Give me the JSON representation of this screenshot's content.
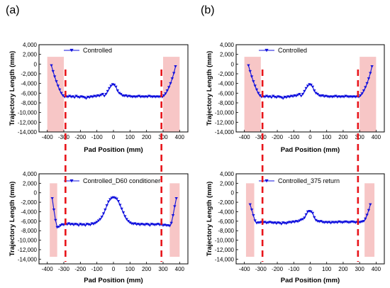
{
  "panel_labels": [
    "(a)",
    "(b)"
  ],
  "chart_data": [
    {
      "id": "top-left",
      "type": "line",
      "xlabel": "Pad Position (mm)",
      "ylabel": "Trajectory Length (mm)",
      "xlim": [
        -450,
        450
      ],
      "ylim": [
        -14000,
        4000
      ],
      "xticks": [
        -400,
        -300,
        -200,
        -100,
        0,
        100,
        200,
        300,
        400
      ],
      "yticks": [
        4000,
        2000,
        0,
        -2000,
        -4000,
        -6000,
        -8000,
        -10000,
        -12000,
        -14000
      ],
      "ytick_labels": [
        "4,000",
        "2,000",
        "0",
        "-2,000",
        "-4,000",
        "-6,000",
        "-8,000",
        "-10,000",
        "-12,000",
        "-14,000"
      ],
      "shaded_regions": [
        [
          -400,
          -300,
          -14000,
          1500
        ],
        [
          300,
          400,
          -14000,
          1500
        ]
      ],
      "dashed_lines": [
        -290,
        290
      ],
      "series": [
        {
          "name": "Controlled",
          "color": "#1010dd",
          "x": [
            -375,
            -365,
            -355,
            -345,
            -335,
            -325,
            -315,
            -305,
            -295,
            -285,
            -275,
            -265,
            -255,
            -245,
            -235,
            -225,
            -215,
            -205,
            -195,
            -185,
            -175,
            -165,
            -155,
            -145,
            -135,
            -125,
            -115,
            -105,
            -95,
            -85,
            -75,
            -65,
            -55,
            -45,
            -35,
            -25,
            -15,
            -5,
            5,
            15,
            25,
            35,
            45,
            55,
            65,
            75,
            85,
            95,
            105,
            115,
            125,
            135,
            145,
            155,
            165,
            175,
            185,
            195,
            205,
            215,
            225,
            235,
            245,
            255,
            265,
            275,
            285,
            295,
            305,
            315,
            325,
            335,
            345,
            355,
            365,
            375
          ],
          "y": [
            -300,
            -1500,
            -2600,
            -3600,
            -4500,
            -5300,
            -6000,
            -6500,
            -6800,
            -6700,
            -6800,
            -6600,
            -6800,
            -6700,
            -6900,
            -6600,
            -6800,
            -6900,
            -6700,
            -6800,
            -6900,
            -7100,
            -6800,
            -6900,
            -6700,
            -6800,
            -6600,
            -6700,
            -6500,
            -6600,
            -6400,
            -6200,
            -6600,
            -6200,
            -5600,
            -5000,
            -4500,
            -4200,
            -4300,
            -4700,
            -5500,
            -6000,
            -6200,
            -6500,
            -6600,
            -6500,
            -6700,
            -6600,
            -6700,
            -6800,
            -6700,
            -6800,
            -6700,
            -6600,
            -6800,
            -6700,
            -6800,
            -6700,
            -6800,
            -6600,
            -6700,
            -6800,
            -6700,
            -6800,
            -6700,
            -6800,
            -6700,
            -6800,
            -6500,
            -6100,
            -5500,
            -4800,
            -4000,
            -3000,
            -1900,
            -500
          ]
        }
      ]
    },
    {
      "id": "top-right",
      "type": "line",
      "xlabel": "Pad Position (mm)",
      "ylabel": "Trajectory Length (mm)",
      "xlim": [
        -450,
        450
      ],
      "ylim": [
        -14000,
        4000
      ],
      "xticks": [
        -400,
        -300,
        -200,
        -100,
        0,
        100,
        200,
        300,
        400
      ],
      "yticks": [
        4000,
        2000,
        0,
        -2000,
        -4000,
        -6000,
        -8000,
        -10000,
        -12000,
        -14000
      ],
      "ytick_labels": [
        "4,000",
        "2,000",
        "0",
        "-2,000",
        "-4,000",
        "-6,000",
        "-8,000",
        "-10,000",
        "-12,000",
        "-14,000"
      ],
      "shaded_regions": [
        [
          -400,
          -300,
          -14000,
          1500
        ],
        [
          300,
          400,
          -14000,
          1500
        ]
      ],
      "dashed_lines": [
        -290,
        290
      ],
      "series": [
        {
          "name": "Controlled",
          "color": "#1010dd",
          "x": [
            -375,
            -365,
            -355,
            -345,
            -335,
            -325,
            -315,
            -305,
            -295,
            -285,
            -275,
            -265,
            -255,
            -245,
            -235,
            -225,
            -215,
            -205,
            -195,
            -185,
            -175,
            -165,
            -155,
            -145,
            -135,
            -125,
            -115,
            -105,
            -95,
            -85,
            -75,
            -65,
            -55,
            -45,
            -35,
            -25,
            -15,
            -5,
            5,
            15,
            25,
            35,
            45,
            55,
            65,
            75,
            85,
            95,
            105,
            115,
            125,
            135,
            145,
            155,
            165,
            175,
            185,
            195,
            205,
            215,
            225,
            235,
            245,
            255,
            265,
            275,
            285,
            295,
            305,
            315,
            325,
            335,
            345,
            355,
            365,
            375
          ],
          "y": [
            -300,
            -1500,
            -2600,
            -3600,
            -4500,
            -5300,
            -6000,
            -6500,
            -6800,
            -6700,
            -6800,
            -6600,
            -6800,
            -6700,
            -6900,
            -6600,
            -6800,
            -6900,
            -6700,
            -6800,
            -6900,
            -7100,
            -6800,
            -6900,
            -6700,
            -6800,
            -6600,
            -6700,
            -6500,
            -6600,
            -6400,
            -6200,
            -6600,
            -6200,
            -5600,
            -5000,
            -4500,
            -4200,
            -4300,
            -4700,
            -5500,
            -6000,
            -6200,
            -6500,
            -6600,
            -6500,
            -6700,
            -6600,
            -6700,
            -6800,
            -6700,
            -6800,
            -6700,
            -6600,
            -6800,
            -6700,
            -6800,
            -6700,
            -6800,
            -6600,
            -6700,
            -6800,
            -6700,
            -6800,
            -6700,
            -6800,
            -6700,
            -6800,
            -6500,
            -6100,
            -5500,
            -4800,
            -4000,
            -3000,
            -1900,
            -500
          ]
        }
      ]
    },
    {
      "id": "bottom-left",
      "type": "line",
      "xlabel": "Pad Position (mm)",
      "ylabel": "Trajectory Length (mm)",
      "xlim": [
        -450,
        450
      ],
      "ylim": [
        -15000,
        4000
      ],
      "xticks": [
        -400,
        -300,
        -200,
        -100,
        0,
        100,
        200,
        300,
        400
      ],
      "yticks": [
        4000,
        2000,
        0,
        -2000,
        -4000,
        -6000,
        -8000,
        -10000,
        -12000,
        -14000
      ],
      "ytick_labels": [
        "4,000",
        "2,000",
        "0",
        "-2,000",
        "-4,000",
        "-6,000",
        "-8,000",
        "-10,000",
        "-12,000",
        "-14,000"
      ],
      "shaded_regions": [
        [
          -385,
          -340,
          -13500,
          2000
        ],
        [
          340,
          400,
          -13500,
          2000
        ]
      ],
      "dashed_lines": [
        -290,
        290
      ],
      "series": [
        {
          "name": "Controlled_D60 conditioner",
          "color": "#1010dd",
          "x": [
            -370,
            -360,
            -350,
            -340,
            -330,
            -320,
            -310,
            -300,
            -290,
            -280,
            -270,
            -260,
            -250,
            -240,
            -230,
            -220,
            -210,
            -200,
            -190,
            -180,
            -170,
            -160,
            -150,
            -140,
            -130,
            -120,
            -110,
            -100,
            -90,
            -80,
            -70,
            -60,
            -50,
            -40,
            -30,
            -20,
            -10,
            0,
            10,
            20,
            30,
            40,
            50,
            60,
            70,
            80,
            90,
            100,
            110,
            120,
            130,
            140,
            150,
            160,
            170,
            180,
            190,
            200,
            210,
            220,
            230,
            240,
            250,
            260,
            270,
            280,
            290,
            300,
            310,
            320,
            330,
            340,
            350,
            360,
            370,
            380
          ],
          "y": [
            -1200,
            -3600,
            -5800,
            -7300,
            -7200,
            -6900,
            -6700,
            -6800,
            -6600,
            -6700,
            -6500,
            -6700,
            -6600,
            -6800,
            -6600,
            -6700,
            -6900,
            -6600,
            -6800,
            -6700,
            -6900,
            -6600,
            -6700,
            -6800,
            -6500,
            -6600,
            -6400,
            -6200,
            -5900,
            -5600,
            -5100,
            -4400,
            -3600,
            -2700,
            -1900,
            -1400,
            -1100,
            -1000,
            -1100,
            -1300,
            -1800,
            -2600,
            -3400,
            -4200,
            -5000,
            -5600,
            -6000,
            -6300,
            -6500,
            -6600,
            -6500,
            -6700,
            -6600,
            -6800,
            -6600,
            -6700,
            -6800,
            -6600,
            -6700,
            -6900,
            -6600,
            -6700,
            -6800,
            -6700,
            -6600,
            -6800,
            -6700,
            -6900,
            -6800,
            -6900,
            -6900,
            -7000,
            -6400,
            -4800,
            -2900,
            -1200
          ]
        }
      ]
    },
    {
      "id": "bottom-right",
      "type": "line",
      "xlabel": "Pad Position (mm)",
      "ylabel": "Trajectory Length (mm)",
      "xlim": [
        -450,
        450
      ],
      "ylim": [
        -15000,
        4000
      ],
      "xticks": [
        -400,
        -300,
        -200,
        -100,
        0,
        100,
        200,
        300,
        400
      ],
      "yticks": [
        4000,
        2000,
        0,
        -2000,
        -4000,
        -6000,
        -8000,
        -10000,
        -12000,
        -14000
      ],
      "ytick_labels": [
        "4,000",
        "2,000",
        "0",
        "-2,000",
        "-4,000",
        "-6,000",
        "-8,000",
        "-10,000",
        "-12,000",
        "-14,000"
      ],
      "shaded_regions": [
        [
          -390,
          -340,
          -13500,
          2000
        ],
        [
          330,
          390,
          -13500,
          2000
        ]
      ],
      "dashed_lines": [
        -290,
        290
      ],
      "series": [
        {
          "name": "Controlled_375 return",
          "color": "#1010dd",
          "x": [
            -365,
            -355,
            -345,
            -335,
            -325,
            -315,
            -305,
            -295,
            -285,
            -275,
            -265,
            -255,
            -245,
            -235,
            -225,
            -215,
            -205,
            -195,
            -185,
            -175,
            -165,
            -155,
            -145,
            -135,
            -125,
            -115,
            -105,
            -95,
            -85,
            -75,
            -65,
            -55,
            -45,
            -35,
            -25,
            -15,
            -5,
            5,
            15,
            25,
            35,
            45,
            55,
            65,
            75,
            85,
            95,
            105,
            115,
            125,
            135,
            145,
            155,
            165,
            175,
            185,
            195,
            205,
            215,
            225,
            235,
            245,
            255,
            265,
            275,
            285,
            295,
            305,
            315,
            325,
            335,
            345,
            355,
            365
          ],
          "y": [
            -2500,
            -3600,
            -4800,
            -5900,
            -6400,
            -6300,
            -6300,
            -6200,
            -6300,
            -6200,
            -6400,
            -6300,
            -6200,
            -6300,
            -6400,
            -6300,
            -6500,
            -6300,
            -6400,
            -6600,
            -6300,
            -6400,
            -6500,
            -6300,
            -6200,
            -6300,
            -6100,
            -6200,
            -6000,
            -6100,
            -5900,
            -5700,
            -5600,
            -5300,
            -4600,
            -4000,
            -3900,
            -4000,
            -4300,
            -5200,
            -5800,
            -6000,
            -6100,
            -6000,
            -6200,
            -6300,
            -6200,
            -6300,
            -6200,
            -6400,
            -6200,
            -6300,
            -6200,
            -6300,
            -6100,
            -6200,
            -6300,
            -6200,
            -6100,
            -6200,
            -6300,
            -6200,
            -6100,
            -6200,
            -6300,
            -6200,
            -6300,
            -6200,
            -6100,
            -6000,
            -5500,
            -4700,
            -3700,
            -2500
          ]
        }
      ]
    }
  ]
}
